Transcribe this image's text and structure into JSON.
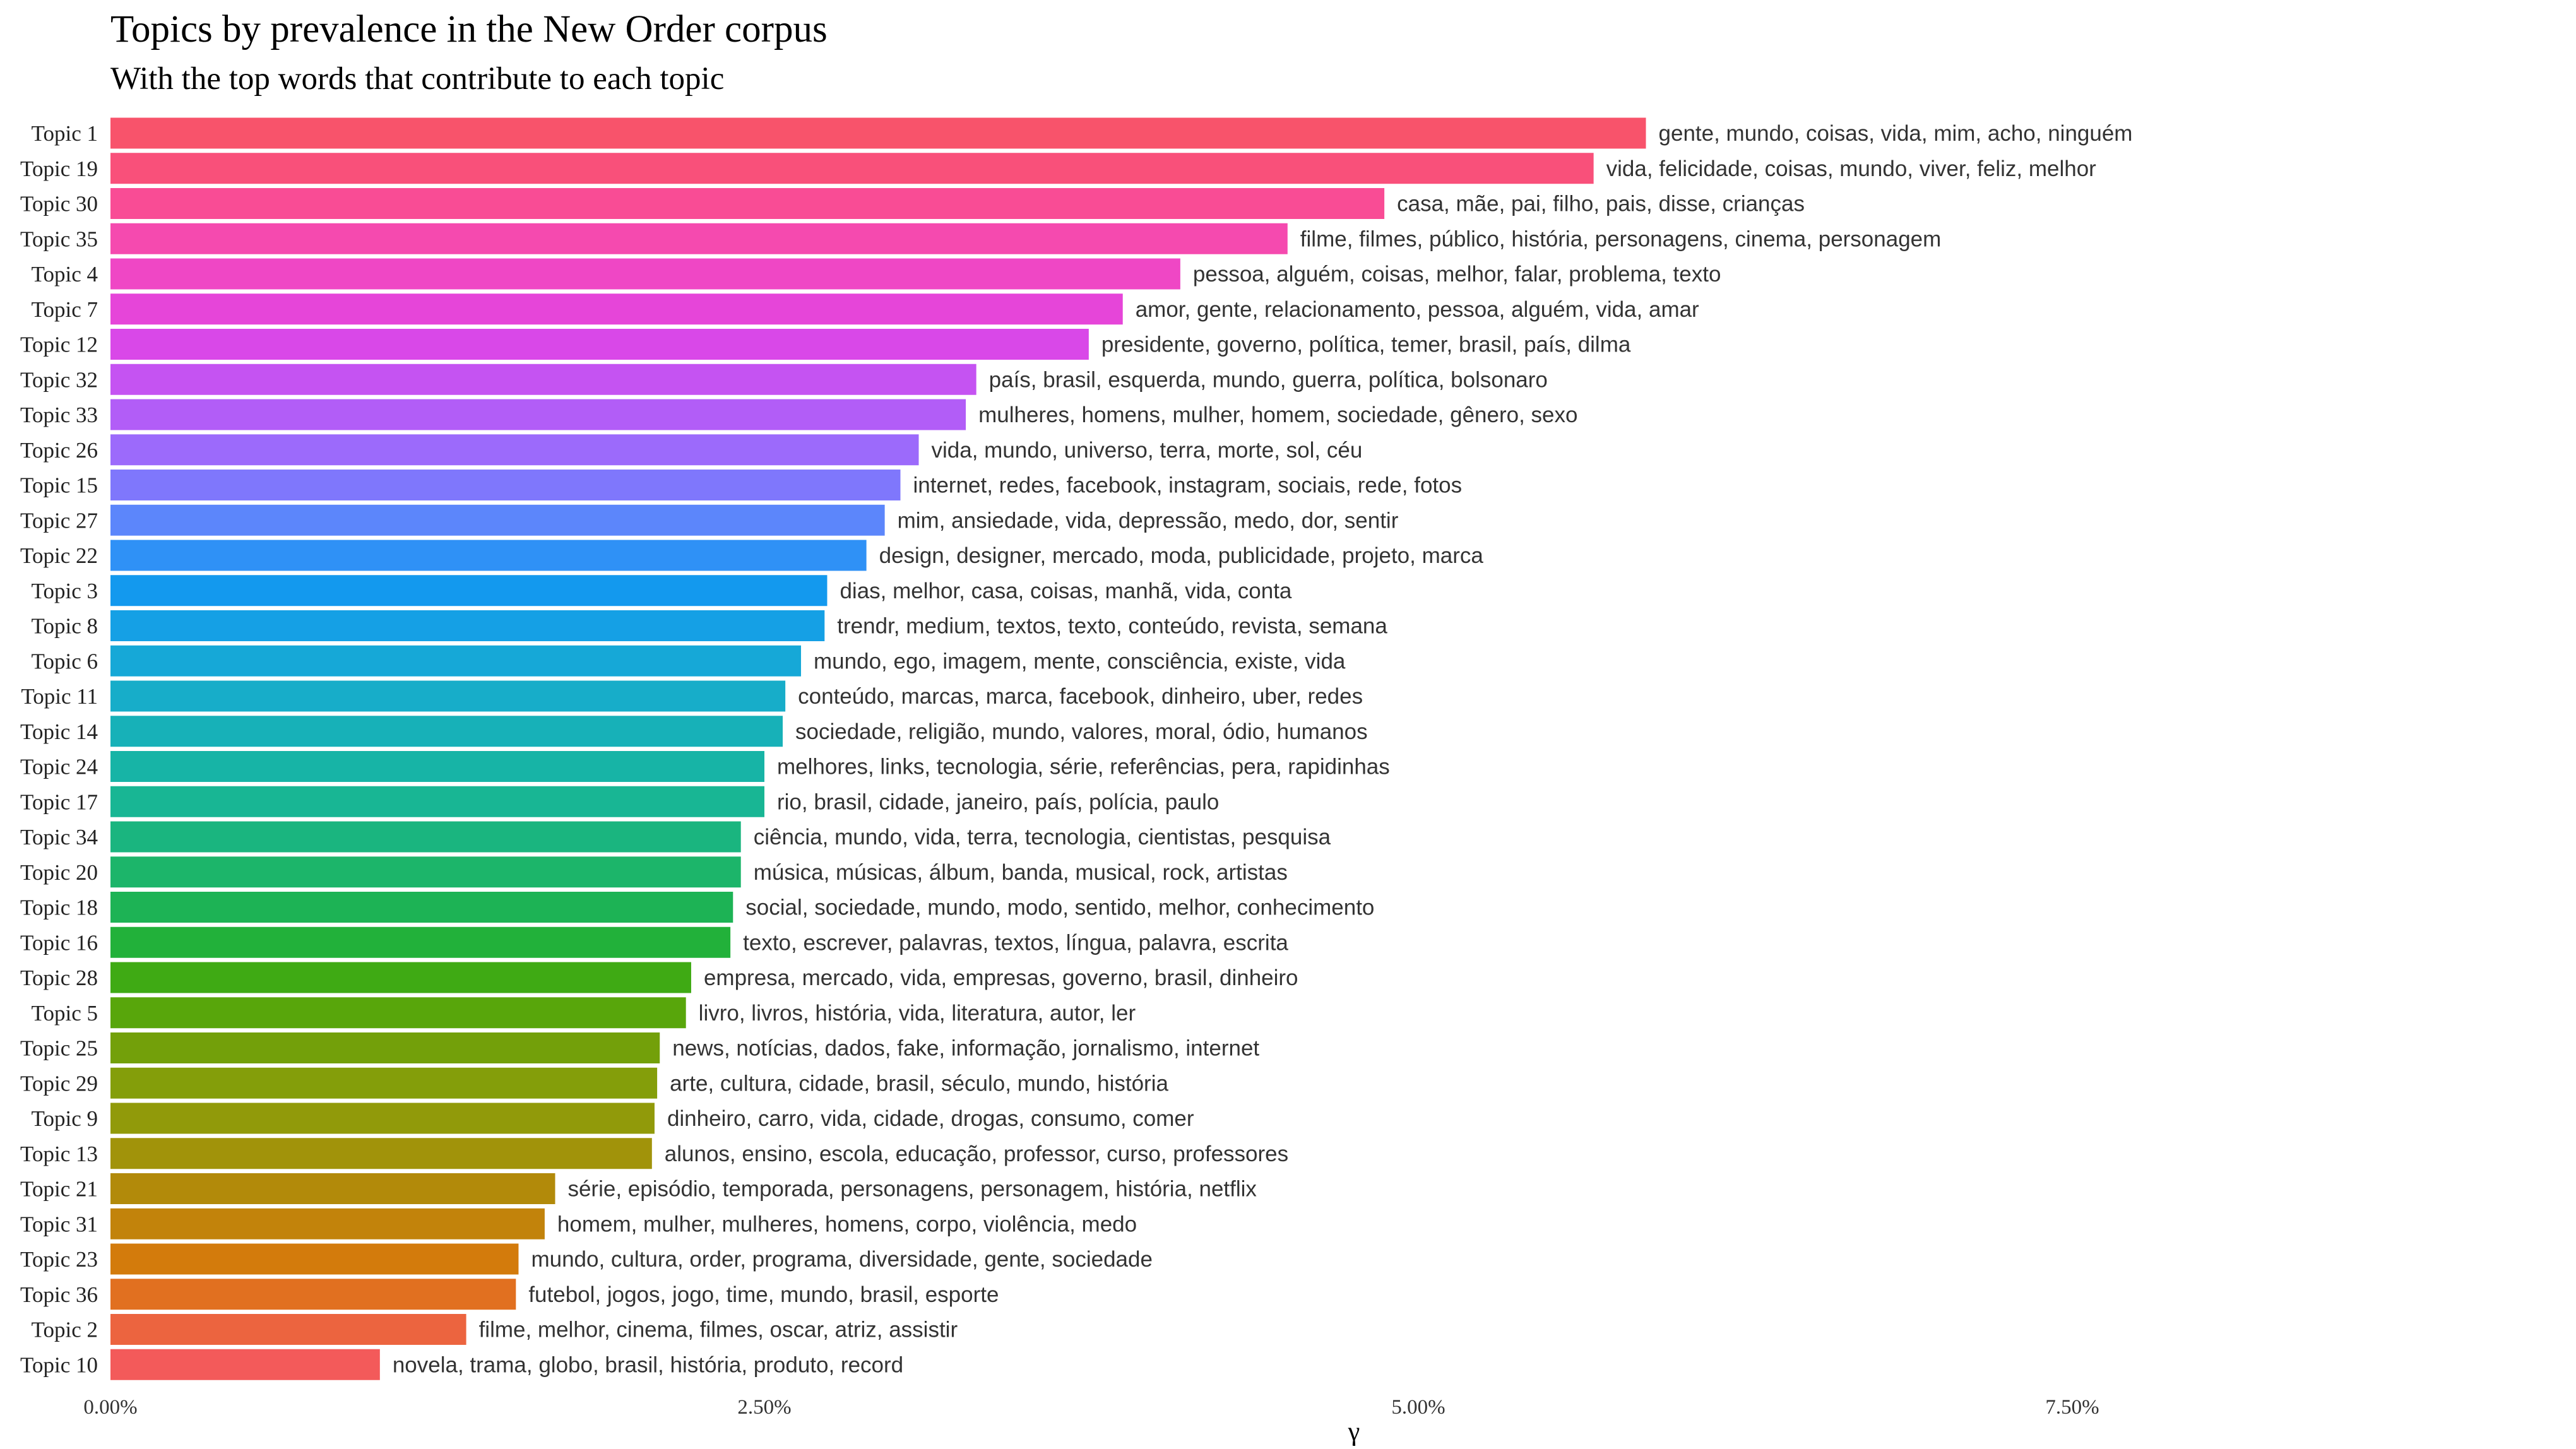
{
  "chart_data": {
    "type": "bar",
    "orientation": "horizontal",
    "title": "Topics by prevalence in the New Order corpus",
    "subtitle": "With the top words that contribute to each topic",
    "xlabel": "γ",
    "xlim": [
      0,
      0.095
    ],
    "x_ticks": [
      {
        "value": 0.0,
        "label": "0.00%"
      },
      {
        "value": 0.025,
        "label": "2.50%"
      },
      {
        "value": 0.05,
        "label": "5.00%"
      },
      {
        "value": 0.075,
        "label": "7.50%"
      }
    ],
    "grid": false,
    "legend": "none",
    "bars": [
      {
        "category": "Topic 1",
        "value": 0.0587,
        "color": "#F8536B",
        "label": "gente, mundo, coisas, vida, mim, acho, ninguém"
      },
      {
        "category": "Topic 19",
        "value": 0.0567,
        "color": "#F9507A",
        "label": "vida, felicidade, coisas, mundo, viver, feliz, melhor"
      },
      {
        "category": "Topic 30",
        "value": 0.0487,
        "color": "#F94C95",
        "label": "casa, mãe, pai, filho, pais, disse, crianças"
      },
      {
        "category": "Topic 35",
        "value": 0.045,
        "color": "#F54AAF",
        "label": "filme, filmes, público, história, personagens, cinema, personagem"
      },
      {
        "category": "Topic 4",
        "value": 0.0409,
        "color": "#EF47C5",
        "label": "pessoa, alguém, coisas, melhor, falar, problema, texto"
      },
      {
        "category": "Topic 7",
        "value": 0.0387,
        "color": "#E645D9",
        "label": "amor, gente, relacionamento, pessoa, alguém, vida, amar"
      },
      {
        "category": "Topic 12",
        "value": 0.0374,
        "color": "#D948E8",
        "label": "presidente, governo, política, temer, brasil, país, dilma"
      },
      {
        "category": "Topic 32",
        "value": 0.0331,
        "color": "#C553F2",
        "label": "país, brasil, esquerda, mundo, guerra, política, bolsonaro"
      },
      {
        "category": "Topic 33",
        "value": 0.0327,
        "color": "#B25DF7",
        "label": "mulheres, homens, mulher, homem, sociedade, gênero, sexo"
      },
      {
        "category": "Topic 26",
        "value": 0.0309,
        "color": "#9C6AFB",
        "label": "vida, mundo, universo, terra, morte, sol, céu"
      },
      {
        "category": "Topic 15",
        "value": 0.0302,
        "color": "#7F77FC",
        "label": "internet, redes, facebook, instagram, sociais, rede, fotos"
      },
      {
        "category": "Topic 27",
        "value": 0.0296,
        "color": "#5C86FB",
        "label": "mim, ansiedade, vida, depressão, medo, dor, sentir"
      },
      {
        "category": "Topic 22",
        "value": 0.0289,
        "color": "#2F91F6",
        "label": "design, designer, mercado, moda, publicidade, projeto, marca"
      },
      {
        "category": "Topic 3",
        "value": 0.0274,
        "color": "#1399EE",
        "label": "dias, melhor, casa, coisas, manhã, vida, conta"
      },
      {
        "category": "Topic 8",
        "value": 0.0273,
        "color": "#15A0E5",
        "label": "trendr, medium, textos, texto, conteúdo, revista, semana"
      },
      {
        "category": "Topic 6",
        "value": 0.0264,
        "color": "#16A8D7",
        "label": "mundo, ego, imagem, mente, consciência, existe, vida"
      },
      {
        "category": "Topic 11",
        "value": 0.0258,
        "color": "#17ADC9",
        "label": "conteúdo, marcas, marca, facebook, dinheiro, uber, redes"
      },
      {
        "category": "Topic 14",
        "value": 0.0257,
        "color": "#17B1B8",
        "label": "sociedade, religião, mundo, valores, moral, ódio, humanos"
      },
      {
        "category": "Topic 24",
        "value": 0.025,
        "color": "#17B4A6",
        "label": "melhores, links, tecnologia, série, referências, pera, rapidinhas"
      },
      {
        "category": "Topic 17",
        "value": 0.025,
        "color": "#18B694",
        "label": "rio, brasil, cidade, janeiro, país, polícia, paulo"
      },
      {
        "category": "Topic 34",
        "value": 0.0241,
        "color": "#1AB57F",
        "label": "ciência, mundo, vida, terra, tecnologia, cientistas, pesquisa"
      },
      {
        "category": "Topic 20",
        "value": 0.0241,
        "color": "#1CB56A",
        "label": "música, músicas, álbum, banda, musical, rock, artistas"
      },
      {
        "category": "Topic 18",
        "value": 0.0238,
        "color": "#1DB355",
        "label": "social, sociedade, mundo, modo, sentido, melhor, conhecimento"
      },
      {
        "category": "Topic 16",
        "value": 0.0237,
        "color": "#22B13A",
        "label": "texto, escrever, palavras, textos, língua, palavra, escrita"
      },
      {
        "category": "Topic 28",
        "value": 0.0222,
        "color": "#3FAA14",
        "label": "empresa, mercado, vida, empresas, governo, brasil, dinheiro"
      },
      {
        "category": "Topic 5",
        "value": 0.022,
        "color": "#58A60B",
        "label": "livro, livros, história, vida, literatura, autor, ler"
      },
      {
        "category": "Topic 25",
        "value": 0.021,
        "color": "#73A00A",
        "label": "news, notícias, dados, fake, informação, jornalismo, internet"
      },
      {
        "category": "Topic 29",
        "value": 0.0209,
        "color": "#849E0A",
        "label": "arte, cultura, cidade, brasil, século, mundo, história"
      },
      {
        "category": "Topic 9",
        "value": 0.0208,
        "color": "#919A0A",
        "label": "dinheiro, carro, vida, cidade, drogas, consumo, comer"
      },
      {
        "category": "Topic 13",
        "value": 0.0207,
        "color": "#A1930A",
        "label": "alunos, ensino, escola, educação, professor, curso, professores"
      },
      {
        "category": "Topic 21",
        "value": 0.017,
        "color": "#B28A0A",
        "label": "série, episódio, temporada, personagens, personagem, história, netflix"
      },
      {
        "category": "Topic 31",
        "value": 0.0166,
        "color": "#C2830B",
        "label": "homem, mulher, mulheres, homens, corpo, violência, medo"
      },
      {
        "category": "Topic 23",
        "value": 0.0156,
        "color": "#D37B0C",
        "label": "mundo, cultura, order, programa, diversidade, gente, sociedade"
      },
      {
        "category": "Topic 36",
        "value": 0.0155,
        "color": "#E17020",
        "label": "futebol, jogos, jogo, time, mundo, brasil, esporte"
      },
      {
        "category": "Topic 2",
        "value": 0.0136,
        "color": "#EC643F",
        "label": "filme, melhor, cinema, filmes, oscar, atriz, assistir"
      },
      {
        "category": "Topic 10",
        "value": 0.0103,
        "color": "#F35A5A",
        "label": "novela, trama, globo, brasil, história, produto, record"
      }
    ]
  }
}
